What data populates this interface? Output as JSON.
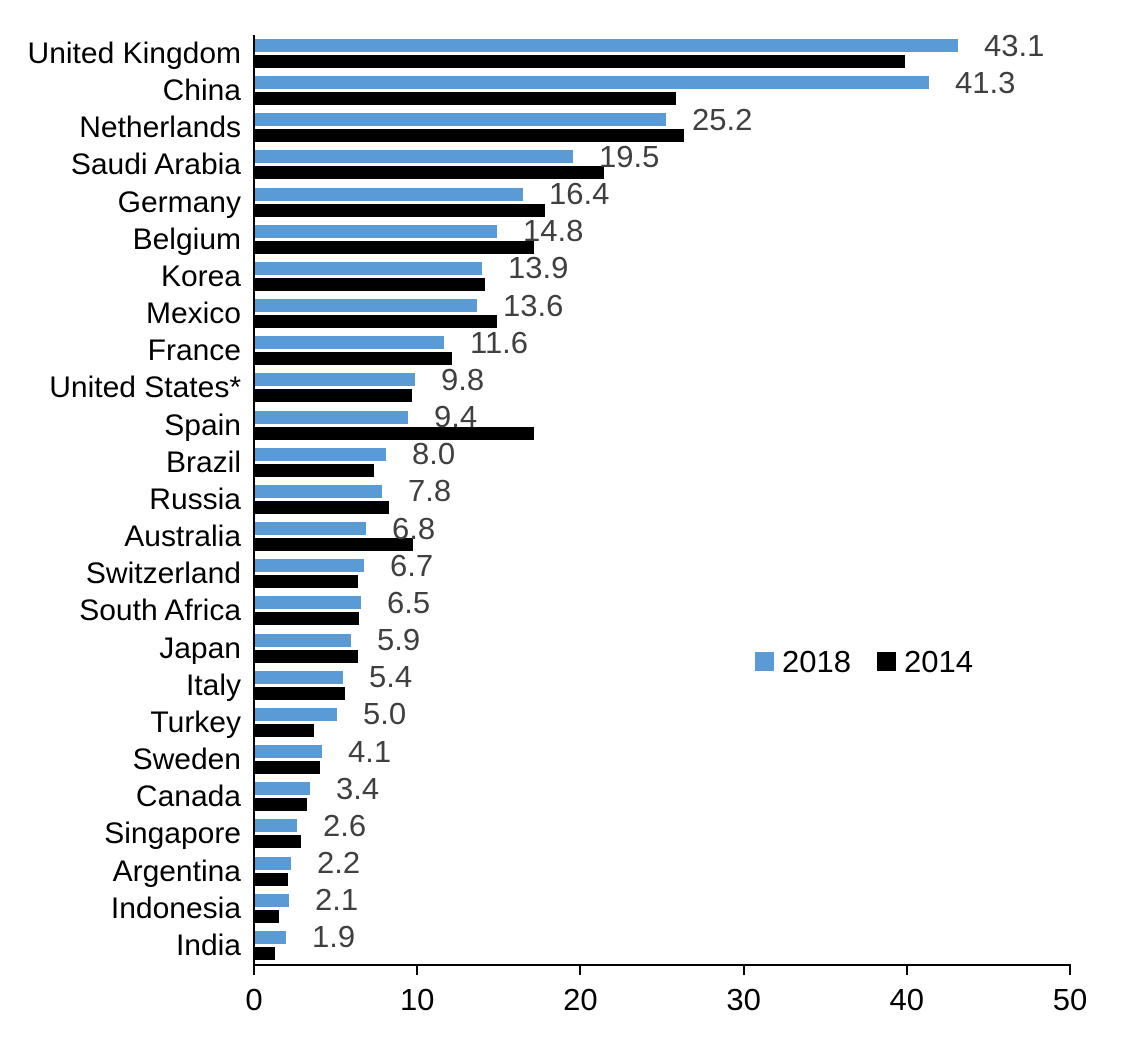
{
  "chart_data": {
    "type": "bar",
    "orientation": "horizontal",
    "title": "",
    "xlabel": "",
    "ylabel": "",
    "categories": [
      "United Kingdom",
      "China",
      "Netherlands",
      "Saudi Arabia",
      "Germany",
      "Belgium",
      "Korea",
      "Mexico",
      "France",
      "United States*",
      "Spain",
      "Brazil",
      "Russia",
      "Australia",
      "Switzerland",
      "South Africa",
      "Japan",
      "Italy",
      "Turkey",
      "Sweden",
      "Canada",
      "Singapore",
      "Argentina",
      "Indonesia",
      "India"
    ],
    "series": [
      {
        "name": "2018",
        "color": "#5B9BD5",
        "values": [
          43.1,
          41.3,
          25.2,
          19.5,
          16.4,
          14.8,
          13.9,
          13.6,
          11.6,
          9.8,
          9.4,
          8.0,
          7.8,
          6.8,
          6.7,
          6.5,
          5.9,
          5.4,
          5.0,
          4.1,
          3.4,
          2.6,
          2.2,
          2.1,
          1.9
        ]
      },
      {
        "name": "2014",
        "color": "#000000",
        "values": [
          39.8,
          25.8,
          26.3,
          21.4,
          17.8,
          17.1,
          14.1,
          14.8,
          12.1,
          9.6,
          17.1,
          7.3,
          8.2,
          9.7,
          6.3,
          6.4,
          6.3,
          5.5,
          3.6,
          4.0,
          3.2,
          2.8,
          2.0,
          1.5,
          1.2
        ]
      }
    ],
    "data_labels": {
      "series": "2018",
      "values": [
        "43.1",
        "41.3",
        "25.2",
        "19.5",
        "16.4",
        "14.8",
        "13.9",
        "13.6",
        "11.6",
        "9.8",
        "9.4",
        "8.0",
        "7.8",
        "6.8",
        "6.7",
        "6.5",
        "5.9",
        "5.4",
        "5.0",
        "4.1",
        "3.4",
        "2.6",
        "2.2",
        "2.1",
        "1.9"
      ]
    },
    "xlim": [
      0,
      50
    ],
    "x_ticks": [
      "0",
      "10",
      "20",
      "30",
      "40",
      "50"
    ],
    "grid": false,
    "legend": {
      "position": "center-right",
      "entries": [
        {
          "label": "2018",
          "color": "#5B9BD5"
        },
        {
          "label": "2014",
          "color": "#000000"
        }
      ]
    }
  },
  "colors": {
    "series_2018": "#5B9BD5",
    "series_2014": "#000000",
    "value_label_text": "#404040",
    "axis": "#000000",
    "background": "#ffffff"
  }
}
